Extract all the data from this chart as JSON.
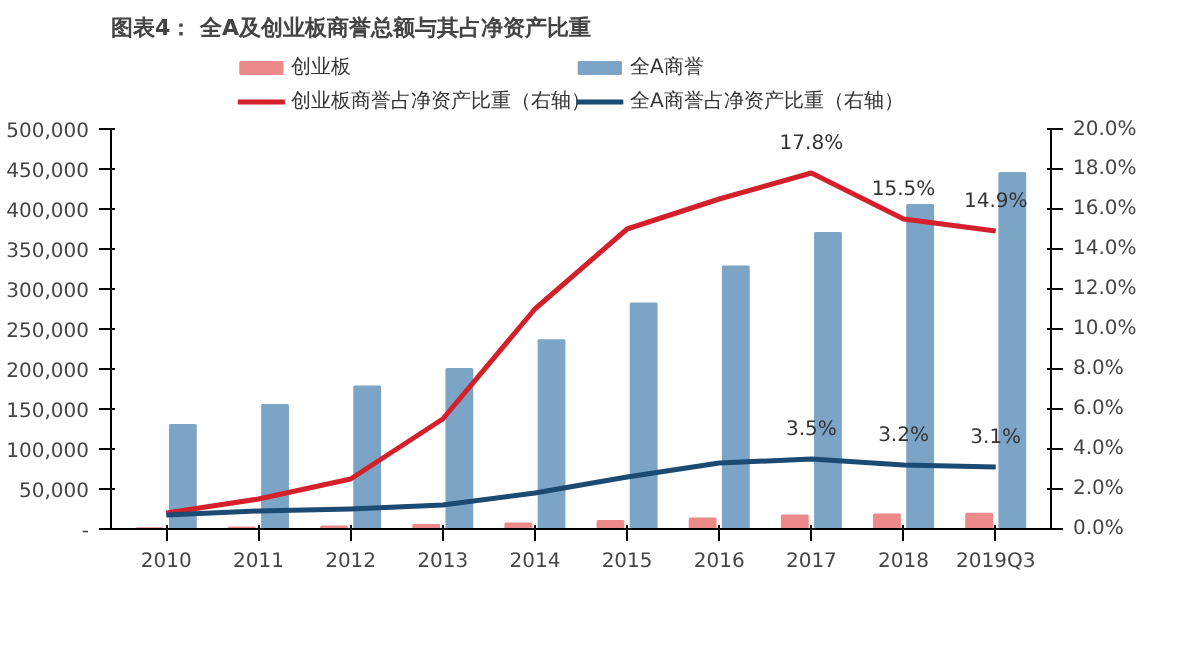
{
  "chart_data": {
    "type": "bar",
    "title": "图表4： 全A及创业板商誉总额与其占净资产比重",
    "categories": [
      "2010",
      "2011",
      "2012",
      "2013",
      "2014",
      "2015",
      "2016",
      "2017",
      "2018",
      "2019Q3"
    ],
    "series": [
      {
        "name": "创业板",
        "color": "#ec8a8a",
        "values": [
          1000,
          2000,
          3000,
          5000,
          7000,
          10000,
          13000,
          17000,
          18000,
          19000
        ]
      },
      {
        "name": "全A商誉",
        "color": "#7ba4c6",
        "values": [
          130000,
          155000,
          178000,
          200000,
          236000,
          282000,
          328000,
          370000,
          405000,
          445000
        ]
      },
      {
        "name": "创业板商誉占净资产比重（右轴）",
        "type": "line",
        "axis": "y2",
        "color": "#d4202a",
        "values": [
          0.8,
          1.5,
          2.5,
          5.5,
          11,
          15,
          16.5,
          17.8,
          15.5,
          14.9
        ],
        "value_labels": [
          null,
          null,
          null,
          null,
          null,
          null,
          null,
          "17.8%",
          "15.5%",
          "14.9%"
        ]
      },
      {
        "name": "全A商誉占净资产比重（右轴）",
        "type": "line",
        "axis": "y2",
        "color": "#1b4a72",
        "values": [
          0.7,
          0.9,
          1.0,
          1.2,
          1.8,
          2.6,
          3.3,
          3.5,
          3.2,
          3.1
        ],
        "value_labels": [
          null,
          null,
          null,
          null,
          null,
          null,
          null,
          "3.5%",
          "3.2%",
          "3.1%"
        ]
      }
    ],
    "ylim": [
      0,
      500000
    ],
    "yticks": [
      {
        "value": 0,
        "label": "-"
      },
      {
        "value": 50000,
        "label": "50,000"
      },
      {
        "value": 100000,
        "label": "100,000"
      },
      {
        "value": 150000,
        "label": "150,000"
      },
      {
        "value": 200000,
        "label": "200,000"
      },
      {
        "value": 250000,
        "label": "250,000"
      },
      {
        "value": 300000,
        "label": "300,000"
      },
      {
        "value": 350000,
        "label": "350,000"
      },
      {
        "value": 400000,
        "label": "400,000"
      },
      {
        "value": 450000,
        "label": "450,000"
      },
      {
        "value": 500000,
        "label": "500,000"
      }
    ],
    "y2lim": [
      0,
      20
    ],
    "y2ticks": [
      {
        "value": 0,
        "label": "0.0%"
      },
      {
        "value": 2,
        "label": "2.0%"
      },
      {
        "value": 4,
        "label": "4.0%"
      },
      {
        "value": 6,
        "label": "6.0%"
      },
      {
        "value": 8,
        "label": "8.0%"
      },
      {
        "value": 10,
        "label": "10.0%"
      },
      {
        "value": 12,
        "label": "12.0%"
      },
      {
        "value": 14,
        "label": "14.0%"
      },
      {
        "value": 16,
        "label": "16.0%"
      },
      {
        "value": 18,
        "label": "18.0%"
      },
      {
        "value": 20,
        "label": "20.0%"
      }
    ],
    "grid": false,
    "legend": "top"
  }
}
